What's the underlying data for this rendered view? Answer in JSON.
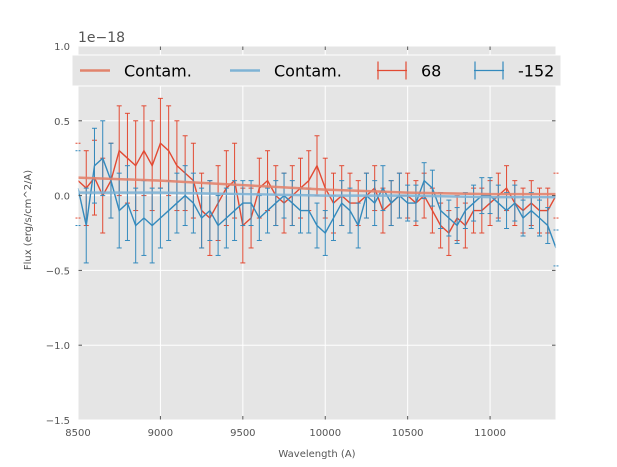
{
  "chart_data": {
    "type": "line",
    "title": "",
    "xlabel": "Wavelength (A)",
    "ylabel": "Flux (erg/s/cm^2/A)",
    "offset_text": "1e−18",
    "xlim": [
      8500,
      11400
    ],
    "ylim": [
      -1.5,
      1.0
    ],
    "x_ticks": [
      8500,
      9000,
      9500,
      10000,
      10500,
      11000
    ],
    "x_tick_labels": [
      "8500",
      "9000",
      "9500",
      "10000",
      "10500",
      "11000"
    ],
    "y_ticks": [
      -1.5,
      -1.0,
      -0.5,
      0.0,
      0.5,
      1.0
    ],
    "y_tick_labels": [
      "−1.5",
      "−1.0",
      "−0.5",
      "0.0",
      "0.5",
      "1.0"
    ],
    "grid": true,
    "legend_position": "top",
    "legend": [
      {
        "label": "Contam.",
        "kind": "line",
        "color": "#E2836D"
      },
      {
        "label": "Contam.",
        "kind": "line",
        "color": "#7FB3D5"
      },
      {
        "label": "68",
        "kind": "errorbar",
        "color": "#E24A33"
      },
      {
        "label": "-152",
        "kind": "errorbar",
        "color": "#348ABD"
      }
    ],
    "series": [
      {
        "name": "68",
        "color": "#E24A33",
        "x": [
          8500,
          8550,
          8600,
          8650,
          8700,
          8750,
          8800,
          8850,
          8900,
          8950,
          9000,
          9050,
          9100,
          9150,
          9200,
          9250,
          9300,
          9350,
          9400,
          9450,
          9500,
          9550,
          9600,
          9650,
          9700,
          9750,
          9800,
          9850,
          9900,
          9950,
          10000,
          10050,
          10100,
          10150,
          10200,
          10250,
          10300,
          10350,
          10400,
          10450,
          10500,
          10550,
          10600,
          10650,
          10700,
          10750,
          10800,
          10850,
          10900,
          10950,
          11000,
          11050,
          11100,
          11150,
          11200,
          11250,
          11300,
          11350,
          11400
        ],
        "y": [
          0.1,
          0.05,
          0.12,
          0.0,
          0.1,
          0.3,
          0.25,
          0.2,
          0.3,
          0.2,
          0.35,
          0.3,
          0.2,
          0.15,
          0.1,
          -0.1,
          -0.15,
          -0.05,
          0.05,
          0.1,
          -0.2,
          -0.15,
          0.05,
          0.1,
          0.0,
          -0.05,
          0.0,
          0.05,
          0.1,
          0.2,
          0.05,
          -0.05,
          0.0,
          -0.05,
          -0.05,
          0.0,
          0.05,
          -0.1,
          -0.05,
          0.0,
          0.0,
          -0.05,
          0.0,
          -0.1,
          -0.2,
          -0.25,
          -0.15,
          -0.2,
          -0.1,
          -0.1,
          -0.05,
          0.0,
          0.05,
          -0.05,
          -0.1,
          -0.05,
          -0.1,
          -0.1,
          0.0
        ],
        "err": [
          0.25,
          0.25,
          0.25,
          0.25,
          0.25,
          0.3,
          0.3,
          0.3,
          0.3,
          0.3,
          0.3,
          0.3,
          0.3,
          0.25,
          0.25,
          0.25,
          0.25,
          0.25,
          0.25,
          0.25,
          0.25,
          0.2,
          0.2,
          0.2,
          0.2,
          0.2,
          0.2,
          0.2,
          0.2,
          0.2,
          0.2,
          0.2,
          0.2,
          0.2,
          0.15,
          0.15,
          0.15,
          0.15,
          0.15,
          0.15,
          0.15,
          0.15,
          0.15,
          0.15,
          0.15,
          0.15,
          0.15,
          0.15,
          0.15,
          0.15,
          0.15,
          0.15,
          0.15,
          0.15,
          0.15,
          0.15,
          0.15,
          0.15,
          0.15
        ]
      },
      {
        "name": "-152",
        "color": "#348ABD",
        "x": [
          8500,
          8550,
          8600,
          8650,
          8700,
          8750,
          8800,
          8850,
          8900,
          8950,
          9000,
          9050,
          9100,
          9150,
          9200,
          9250,
          9300,
          9350,
          9400,
          9450,
          9500,
          9550,
          9600,
          9650,
          9700,
          9750,
          9800,
          9850,
          9900,
          9950,
          10000,
          10050,
          10100,
          10150,
          10200,
          10250,
          10300,
          10350,
          10400,
          10450,
          10500,
          10550,
          10600,
          10650,
          10700,
          10750,
          10800,
          10850,
          10900,
          10950,
          11000,
          11050,
          11100,
          11150,
          11200,
          11250,
          11300,
          11350,
          11400
        ],
        "y": [
          0.05,
          -0.2,
          0.2,
          0.25,
          0.1,
          -0.1,
          -0.05,
          -0.2,
          -0.15,
          -0.2,
          -0.15,
          -0.1,
          -0.05,
          0.0,
          -0.05,
          -0.15,
          -0.1,
          -0.2,
          -0.15,
          -0.1,
          -0.05,
          -0.05,
          -0.15,
          -0.1,
          -0.05,
          0.0,
          -0.05,
          -0.1,
          -0.1,
          -0.2,
          -0.25,
          -0.15,
          -0.05,
          -0.1,
          -0.2,
          0.0,
          -0.05,
          0.05,
          -0.05,
          0.0,
          -0.05,
          -0.05,
          0.1,
          0.05,
          -0.1,
          -0.15,
          -0.2,
          -0.1,
          -0.05,
          0.0,
          0.0,
          -0.05,
          -0.1,
          -0.05,
          -0.15,
          -0.1,
          -0.15,
          -0.2,
          -0.35
        ],
        "err": [
          0.25,
          0.25,
          0.25,
          0.25,
          0.25,
          0.25,
          0.25,
          0.25,
          0.25,
          0.25,
          0.2,
          0.2,
          0.2,
          0.2,
          0.2,
          0.2,
          0.2,
          0.2,
          0.2,
          0.2,
          0.15,
          0.15,
          0.15,
          0.15,
          0.15,
          0.15,
          0.15,
          0.15,
          0.15,
          0.15,
          0.15,
          0.15,
          0.15,
          0.15,
          0.15,
          0.15,
          0.15,
          0.15,
          0.15,
          0.15,
          0.12,
          0.12,
          0.12,
          0.12,
          0.12,
          0.12,
          0.12,
          0.12,
          0.12,
          0.12,
          0.12,
          0.12,
          0.12,
          0.12,
          0.12,
          0.12,
          0.12,
          0.12,
          0.12
        ]
      },
      {
        "name": "Contam.",
        "color": "#E2836D",
        "x": [
          8500,
          9000,
          9500,
          10000,
          10500,
          11000,
          11400
        ],
        "y": [
          0.12,
          0.1,
          0.07,
          0.04,
          0.02,
          0.01,
          0.01
        ]
      },
      {
        "name": "Contam.",
        "color": "#7FB3D5",
        "x": [
          8500,
          9000,
          9500,
          10000,
          10500,
          11000,
          11400
        ],
        "y": [
          0.02,
          0.02,
          0.01,
          0.0,
          0.0,
          -0.01,
          -0.01
        ]
      }
    ]
  }
}
